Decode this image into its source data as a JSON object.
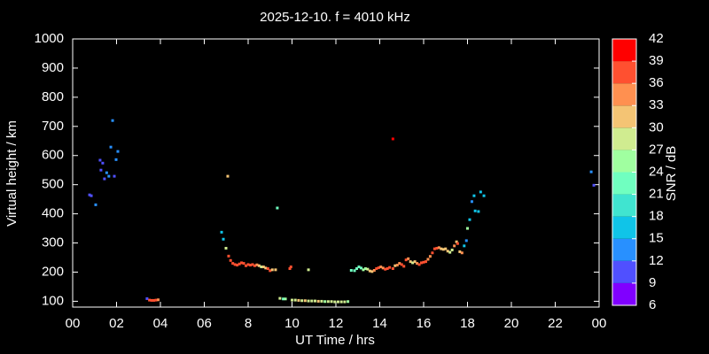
{
  "chart_data": {
    "type": "scatter",
    "title": "2025-12-10. f = 4010 kHz",
    "x_label": "UT Time / hrs",
    "y_label": "Virtual height / km",
    "xlim": [
      0,
      24
    ],
    "ylim": [
      80,
      1000
    ],
    "xticks": [
      {
        "value": 0,
        "label": "00"
      },
      {
        "value": 2,
        "label": "02"
      },
      {
        "value": 4,
        "label": "04"
      },
      {
        "value": 6,
        "label": "06"
      },
      8,
      10,
      12,
      14,
      16,
      18,
      20,
      22,
      {
        "value": 24,
        "label": "00"
      }
    ],
    "yticks": [
      100,
      200,
      300,
      400,
      500,
      600,
      700,
      800,
      900,
      1000
    ],
    "colorbar": {
      "label": "SNR / dB",
      "lim": [
        6,
        42
      ],
      "ticks": [
        6,
        9,
        12,
        15,
        18,
        21,
        24,
        27,
        30,
        33,
        36,
        39,
        42
      ],
      "colors": [
        "#8000ff",
        "#5050ff",
        "#2890ff",
        "#10c4e8",
        "#40e4d0",
        "#70ffc0",
        "#a0ffa0",
        "#d0ec90",
        "#f4c474",
        "#ff9050",
        "#ff5030",
        "#ff0000"
      ]
    },
    "x": [
      0.77,
      0.85,
      1.05,
      1.25,
      1.37,
      1.29,
      1.45,
      1.55,
      1.65,
      1.74,
      1.82,
      1.9,
      1.98,
      2.06,
      3.39,
      3.5,
      3.6,
      3.7,
      3.8,
      3.9,
      6.79,
      6.87,
      6.99,
      7.07,
      7.11,
      7.2,
      7.3,
      7.4,
      7.5,
      7.6,
      7.7,
      7.8,
      7.9,
      8.0,
      8.1,
      8.2,
      8.3,
      8.4,
      8.5,
      8.6,
      8.7,
      8.8,
      8.9,
      9.0,
      9.1,
      9.25,
      9.33,
      9.45,
      9.6,
      9.7,
      9.9,
      9.95,
      10.0,
      10.15,
      10.3,
      10.45,
      10.6,
      10.75,
      10.75,
      10.9,
      11.05,
      11.2,
      11.35,
      11.5,
      11.65,
      11.8,
      11.95,
      12.1,
      12.25,
      12.4,
      12.55,
      12.7,
      12.85,
      12.95,
      13.05,
      13.15,
      13.25,
      13.35,
      13.45,
      13.55,
      13.65,
      13.75,
      13.85,
      13.95,
      14.05,
      14.15,
      14.25,
      14.35,
      14.45,
      14.6,
      14.6,
      14.7,
      14.8,
      14.9,
      15.0,
      15.1,
      15.2,
      15.3,
      15.4,
      15.5,
      15.6,
      15.7,
      15.8,
      15.9,
      16.0,
      16.1,
      16.2,
      16.3,
      16.4,
      16.5,
      16.6,
      16.7,
      16.8,
      16.9,
      17.0,
      17.1,
      17.2,
      17.3,
      17.4,
      17.5,
      17.55,
      17.65,
      17.75,
      17.85,
      17.95,
      18.0,
      18.1,
      18.2,
      18.3,
      18.35,
      18.5,
      18.6,
      18.75,
      23.64,
      23.76
    ],
    "y": [
      465,
      462,
      431,
      584,
      574,
      550,
      520,
      541,
      529,
      629,
      720,
      529,
      586,
      614,
      109,
      104,
      103,
      103,
      104,
      105,
      337,
      313,
      282,
      529,
      255,
      240,
      230,
      226,
      224,
      228,
      232,
      230,
      222,
      226,
      224,
      226,
      222,
      225,
      222,
      218,
      218,
      214,
      212,
      205,
      208,
      208,
      420,
      110,
      108,
      108,
      212,
      218,
      104,
      104,
      103,
      102,
      102,
      101,
      208,
      101,
      101,
      100,
      100,
      99,
      99,
      99,
      98,
      98,
      98,
      98,
      99,
      206,
      205,
      212,
      218,
      214,
      208,
      212,
      210,
      204,
      202,
      206,
      212,
      215,
      218,
      214,
      210,
      212,
      216,
      657,
      212,
      222,
      224,
      230,
      226,
      220,
      242,
      246,
      236,
      232,
      236,
      230,
      226,
      232,
      234,
      236,
      244,
      254,
      266,
      280,
      282,
      284,
      280,
      278,
      280,
      272,
      268,
      276,
      290,
      304,
      298,
      270,
      266,
      290,
      308,
      350,
      380,
      442,
      462,
      410,
      408,
      475,
      462,
      544,
      498
    ],
    "snr": [
      11,
      11,
      12,
      10,
      10,
      11,
      10,
      13,
      14,
      13,
      12,
      11,
      12,
      13,
      11,
      37,
      38,
      37,
      36,
      35,
      17,
      16,
      27,
      32,
      37,
      38,
      38,
      37,
      38,
      37,
      36,
      37,
      38,
      37,
      37,
      36,
      37,
      33,
      31,
      29,
      32,
      30,
      36,
      38,
      31,
      30,
      21,
      28,
      22,
      24,
      38,
      38,
      28,
      29,
      30,
      28,
      30,
      29,
      27,
      27,
      29,
      30,
      28,
      26,
      28,
      27,
      28,
      29,
      27,
      28,
      24,
      21,
      22,
      23,
      21,
      23,
      25,
      26,
      28,
      30,
      31,
      34,
      36,
      37,
      35,
      33,
      36,
      38,
      37,
      41,
      36,
      30,
      33,
      35,
      38,
      36,
      38,
      34,
      32,
      29,
      30,
      34,
      36,
      37,
      38,
      37,
      35,
      33,
      36,
      38,
      36,
      33,
      30,
      31,
      32,
      30,
      27,
      29,
      33,
      31,
      36,
      30,
      33,
      17,
      14,
      26,
      17,
      14,
      16,
      16,
      15,
      16,
      15,
      13,
      11
    ]
  }
}
